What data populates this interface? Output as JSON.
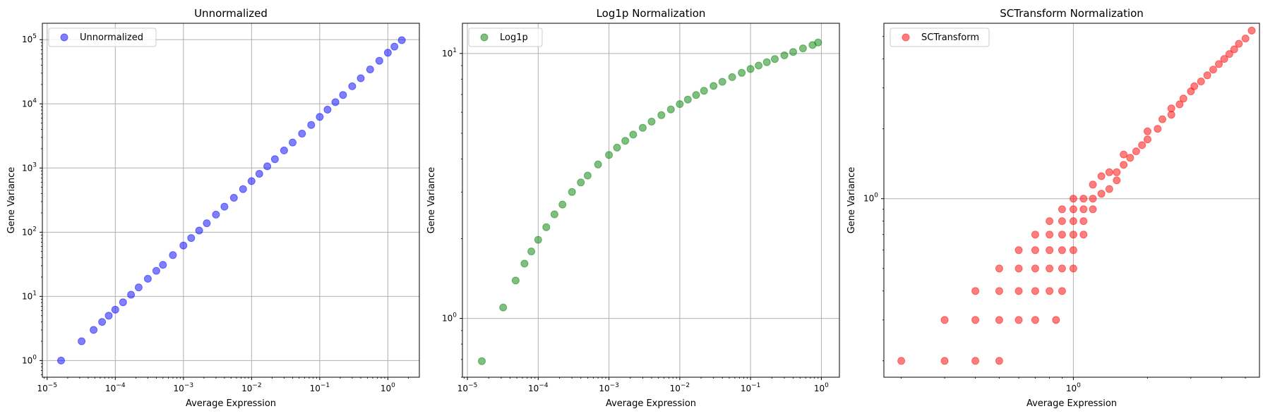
{
  "chart_data": [
    {
      "type": "scatter",
      "title": "Unnormalized",
      "xlabel": "Average Expression",
      "ylabel": "Gene Variance",
      "xscale": "log",
      "yscale": "log",
      "xlim": [
        8.5e-06,
        2.9
      ],
      "ylim": [
        0.55,
        180000
      ],
      "xticks": [
        {
          "base": "10",
          "exp": "−5"
        },
        {
          "base": "10",
          "exp": "−4"
        },
        {
          "base": "10",
          "exp": "−3"
        },
        {
          "base": "10",
          "exp": "−2"
        },
        {
          "base": "10",
          "exp": "−1"
        },
        {
          "base": "10",
          "exp": "0"
        }
      ],
      "yticks": [
        {
          "base": "10",
          "exp": "0"
        },
        {
          "base": "10",
          "exp": "1"
        },
        {
          "base": "10",
          "exp": "2"
        },
        {
          "base": "10",
          "exp": "3"
        },
        {
          "base": "10",
          "exp": "4"
        },
        {
          "base": "10",
          "exp": "5"
        }
      ],
      "grid": true,
      "legend": {
        "position": "top-left",
        "label": "Unnormalized"
      },
      "series": [
        {
          "name": "Unnormalized",
          "color": "#0000ff",
          "opacity": 0.5,
          "x": [
            1.6e-05,
            3.2e-05,
            4.8e-05,
            6.4e-05,
            8e-05,
            0.0001,
            0.00013,
            0.00017,
            0.00022,
            0.0003,
            0.0004,
            0.0005,
            0.0007,
            0.001,
            0.0013,
            0.0017,
            0.0022,
            0.003,
            0.004,
            0.0055,
            0.0075,
            0.01,
            0.013,
            0.017,
            0.022,
            0.03,
            0.04,
            0.055,
            0.075,
            0.1,
            0.13,
            0.17,
            0.22,
            0.3,
            0.4,
            0.55,
            0.75,
            1.0,
            1.25,
            1.6
          ],
          "y": [
            1,
            2,
            3,
            4,
            5,
            6.2,
            8.1,
            10.6,
            13.8,
            18.8,
            25,
            31,
            44,
            62,
            81,
            106,
            138,
            188,
            250,
            344,
            469,
            625,
            812,
            1062,
            1375,
            1875,
            2500,
            3438,
            4688,
            6250,
            8125,
            10625,
            13750,
            18750,
            25000,
            34375,
            46875,
            62500,
            78000,
            98000
          ]
        }
      ]
    },
    {
      "type": "scatter",
      "title": "Log1p Normalization",
      "xlabel": "Average Expression",
      "ylabel": "Gene Variance",
      "xscale": "log",
      "yscale": "log",
      "xlim": [
        8.5e-06,
        1.8
      ],
      "ylim": [
        0.6,
        13
      ],
      "xticks": [
        {
          "base": "10",
          "exp": "−5"
        },
        {
          "base": "10",
          "exp": "−4"
        },
        {
          "base": "10",
          "exp": "−3"
        },
        {
          "base": "10",
          "exp": "−2"
        },
        {
          "base": "10",
          "exp": "−1"
        },
        {
          "base": "10",
          "exp": "0"
        }
      ],
      "yticks": [
        {
          "base": "10",
          "exp": "0"
        },
        {
          "base": "10",
          "exp": "1"
        }
      ],
      "grid": true,
      "legend": {
        "position": "top-left",
        "label": "Log1p"
      },
      "series": [
        {
          "name": "Log1p",
          "color": "#008000",
          "opacity": 0.5,
          "x": [
            1.6e-05,
            3.2e-05,
            4.8e-05,
            6.4e-05,
            8e-05,
            0.0001,
            0.00013,
            0.00017,
            0.00022,
            0.0003,
            0.0004,
            0.0005,
            0.0007,
            0.001,
            0.0013,
            0.0017,
            0.0022,
            0.003,
            0.004,
            0.0055,
            0.0075,
            0.01,
            0.013,
            0.017,
            0.022,
            0.03,
            0.04,
            0.055,
            0.075,
            0.1,
            0.13,
            0.17,
            0.22,
            0.3,
            0.4,
            0.55,
            0.75,
            0.9
          ],
          "y": [
            0.69,
            1.1,
            1.39,
            1.61,
            1.79,
            1.98,
            2.21,
            2.47,
            2.69,
            3.0,
            3.26,
            3.46,
            3.81,
            4.14,
            4.41,
            4.68,
            4.94,
            5.24,
            5.53,
            5.85,
            6.15,
            6.44,
            6.7,
            6.97,
            7.23,
            7.54,
            7.82,
            8.14,
            8.45,
            8.74,
            9.0,
            9.27,
            9.53,
            9.84,
            10.13,
            10.45,
            10.76,
            11.0
          ]
        }
      ]
    },
    {
      "type": "scatter",
      "title": "SCTransform Normalization",
      "xlabel": "Average Expression",
      "ylabel": "Gene Variance",
      "xscale": "log",
      "yscale": "log",
      "xlim": [
        0.17,
        5.7
      ],
      "ylim": [
        0.17,
        5.7
      ],
      "xticks": [
        {
          "base": "10",
          "exp": "0"
        }
      ],
      "yticks": [
        {
          "base": "10",
          "exp": "0"
        }
      ],
      "grid": true,
      "legend": {
        "position": "top-left",
        "label": "SCTransform"
      },
      "series": [
        {
          "name": "SCTransform",
          "color": "#ff0000",
          "opacity": 0.5,
          "points": [
            [
              0.2,
              0.2
            ],
            [
              0.3,
              0.2
            ],
            [
              0.4,
              0.2
            ],
            [
              0.5,
              0.2
            ],
            [
              0.3,
              0.3
            ],
            [
              0.4,
              0.3
            ],
            [
              0.5,
              0.3
            ],
            [
              0.6,
              0.3
            ],
            [
              0.7,
              0.3
            ],
            [
              0.85,
              0.3
            ],
            [
              0.4,
              0.4
            ],
            [
              0.5,
              0.4
            ],
            [
              0.6,
              0.4
            ],
            [
              0.7,
              0.4
            ],
            [
              0.8,
              0.4
            ],
            [
              0.9,
              0.4
            ],
            [
              0.5,
              0.5
            ],
            [
              0.6,
              0.5
            ],
            [
              0.7,
              0.5
            ],
            [
              0.8,
              0.5
            ],
            [
              0.9,
              0.5
            ],
            [
              1.0,
              0.5
            ],
            [
              0.6,
              0.6
            ],
            [
              0.7,
              0.6
            ],
            [
              0.8,
              0.6
            ],
            [
              0.9,
              0.6
            ],
            [
              1.0,
              0.6
            ],
            [
              0.7,
              0.7
            ],
            [
              0.8,
              0.7
            ],
            [
              0.9,
              0.7
            ],
            [
              1.0,
              0.7
            ],
            [
              1.1,
              0.7
            ],
            [
              0.8,
              0.8
            ],
            [
              0.9,
              0.8
            ],
            [
              1.0,
              0.8
            ],
            [
              1.1,
              0.8
            ],
            [
              0.9,
              0.9
            ],
            [
              1.0,
              0.9
            ],
            [
              1.1,
              0.9
            ],
            [
              1.2,
              0.9
            ],
            [
              1.0,
              1.0
            ],
            [
              1.1,
              1.0
            ],
            [
              1.2,
              1.0
            ],
            [
              1.3,
              1.05
            ],
            [
              1.4,
              1.1
            ],
            [
              1.5,
              1.2
            ],
            [
              1.5,
              1.3
            ],
            [
              1.2,
              1.15
            ],
            [
              1.3,
              1.25
            ],
            [
              1.4,
              1.3
            ],
            [
              1.6,
              1.4
            ],
            [
              1.7,
              1.5
            ],
            [
              1.6,
              1.55
            ],
            [
              1.8,
              1.6
            ],
            [
              1.9,
              1.7
            ],
            [
              2.0,
              1.8
            ],
            [
              2.0,
              1.95
            ],
            [
              2.2,
              2.0
            ],
            [
              2.3,
              2.2
            ],
            [
              2.5,
              2.3
            ],
            [
              2.5,
              2.45
            ],
            [
              2.7,
              2.55
            ],
            [
              2.8,
              2.7
            ],
            [
              3.0,
              2.9
            ],
            [
              3.1,
              3.05
            ],
            [
              3.3,
              3.2
            ],
            [
              3.5,
              3.4
            ],
            [
              3.7,
              3.6
            ],
            [
              3.9,
              3.8
            ],
            [
              4.1,
              4.0
            ],
            [
              4.3,
              4.2
            ],
            [
              4.5,
              4.4
            ],
            [
              4.7,
              4.65
            ],
            [
              5.0,
              4.9
            ],
            [
              5.3,
              5.3
            ]
          ]
        }
      ]
    }
  ]
}
